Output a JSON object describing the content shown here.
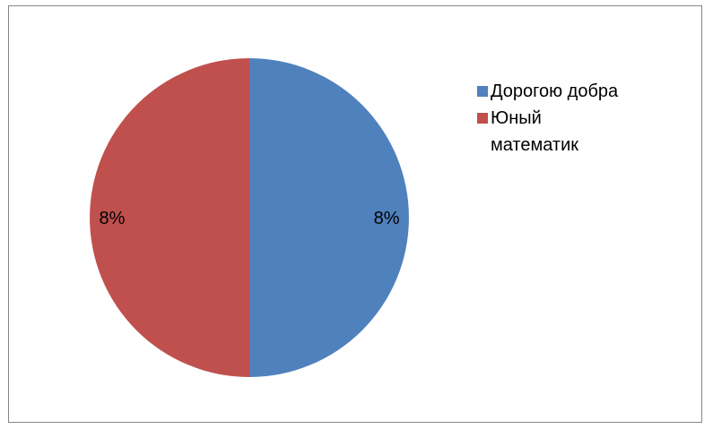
{
  "chart_data": {
    "type": "pie",
    "title": "",
    "categories": [
      "Дорогою добра",
      "Юный математик"
    ],
    "values": [
      8,
      8
    ],
    "data_labels": [
      "8%",
      "8%"
    ],
    "colors": [
      "#4F81BD",
      "#C0504D"
    ],
    "start_angle": "12 o'clock",
    "direction": "clockwise",
    "legend_position": "right",
    "legend": [
      {
        "label": "Дорогою добра",
        "color": "#4F81BD"
      },
      {
        "label": "Юный математик",
        "color": "#C0504D"
      }
    ]
  }
}
